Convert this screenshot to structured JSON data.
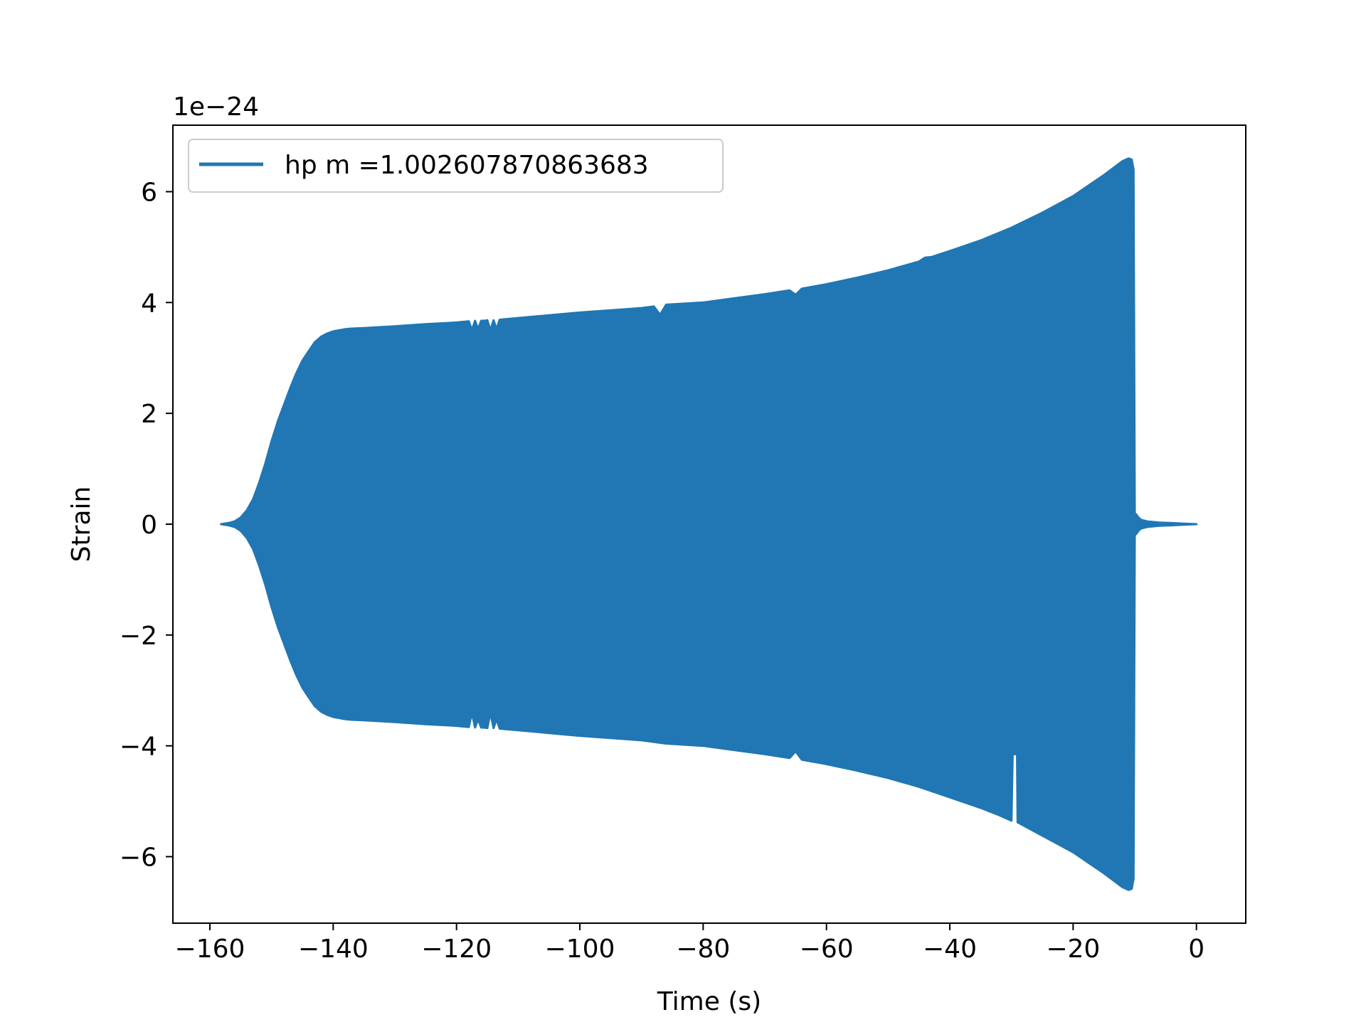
{
  "chart_data": {
    "type": "area",
    "xlabel": "Time (s)",
    "ylabel": "Strain",
    "offset_label": "1e−24",
    "xlim": [
      -166,
      8
    ],
    "ylim": [
      -7.2,
      7.2
    ],
    "xticks": [
      -160,
      -140,
      -120,
      -100,
      -80,
      -60,
      -40,
      -20,
      0
    ],
    "xtick_labels": [
      "−160",
      "−140",
      "−120",
      "−100",
      "−80",
      "−60",
      "−40",
      "−20",
      "0"
    ],
    "yticks": [
      -6,
      -4,
      -2,
      0,
      2,
      4,
      6
    ],
    "ytick_labels": [
      "−6",
      "−4",
      "−2",
      "0",
      "2",
      "4",
      "6"
    ],
    "grid": false,
    "legend": {
      "position": "upper-left",
      "entries": [
        {
          "label": "hp m =1.002607870863683",
          "color": "#2077b4"
        }
      ]
    },
    "series": [
      {
        "name": "hp m =1.002607870863683",
        "color": "#2077b4",
        "upper_envelope": {
          "x": [
            -158.2,
            -157,
            -156,
            -155,
            -154,
            -153,
            -152,
            -151,
            -150,
            -149,
            -148,
            -147,
            -146,
            -145,
            -144,
            -143,
            -142,
            -141,
            -140,
            -139,
            -138,
            -137,
            -135,
            -130,
            -125,
            -120,
            -118,
            -117.5,
            -117,
            -116.5,
            -116,
            -115.5,
            -115,
            -114.5,
            -114,
            -113.5,
            -113,
            -110,
            -100,
            -90,
            -88,
            -87,
            -86,
            -80,
            -70,
            -66,
            -65,
            -64,
            -60,
            -55,
            -50,
            -45,
            -44,
            -43,
            -40,
            -35,
            -30,
            -25,
            -20,
            -15,
            -12,
            -11,
            -10.5,
            -10.2,
            -10.0,
            -9.8,
            -9.6,
            -9.4,
            -9.2,
            -9.0,
            -8,
            -6,
            -4,
            -2,
            0
          ],
          "y": [
            0.0,
            0.02,
            0.05,
            0.12,
            0.25,
            0.45,
            0.75,
            1.1,
            1.5,
            1.85,
            2.15,
            2.45,
            2.72,
            2.95,
            3.12,
            3.28,
            3.38,
            3.44,
            3.48,
            3.5,
            3.52,
            3.53,
            3.54,
            3.57,
            3.61,
            3.64,
            3.66,
            3.5,
            3.67,
            3.52,
            3.67,
            3.67,
            3.68,
            3.5,
            3.68,
            3.52,
            3.69,
            3.72,
            3.82,
            3.9,
            3.93,
            3.78,
            3.96,
            4.0,
            4.15,
            4.22,
            4.14,
            4.25,
            4.33,
            4.45,
            4.58,
            4.74,
            4.81,
            4.82,
            4.93,
            5.12,
            5.35,
            5.62,
            5.92,
            6.3,
            6.55,
            6.6,
            6.58,
            6.4,
            0.2,
            0.18,
            0.15,
            0.12,
            0.1,
            0.08,
            0.05,
            0.03,
            0.02,
            0.01,
            0.0
          ]
        },
        "lower_envelope": {
          "x": [
            -158.2,
            -157,
            -156,
            -155,
            -154,
            -153,
            -152,
            -151,
            -150,
            -149,
            -148,
            -147,
            -146,
            -145,
            -144,
            -143,
            -142,
            -141,
            -140,
            -139,
            -138,
            -137,
            -135,
            -130,
            -125,
            -120,
            -118,
            -117.5,
            -117,
            -116.5,
            -116,
            -115.5,
            -115,
            -114.5,
            -114,
            -113.5,
            -113,
            -110,
            -100,
            -90,
            -86,
            -80,
            -70,
            -66,
            -65,
            -64,
            -60,
            -55,
            -50,
            -45,
            -40,
            -35,
            -32,
            -30,
            -29.8,
            -29.7,
            -29.5,
            -29.3,
            -29.1,
            -29.0,
            -25,
            -20,
            -15,
            -12,
            -11,
            -10.5,
            -10.2,
            -10.0,
            -9.8,
            -9.6,
            -9.4,
            -9.2,
            -9.0,
            -8,
            -6,
            -4,
            -2,
            0
          ],
          "y": [
            0.0,
            -0.02,
            -0.05,
            -0.12,
            -0.25,
            -0.45,
            -0.75,
            -1.1,
            -1.5,
            -1.85,
            -2.15,
            -2.45,
            -2.72,
            -2.95,
            -3.12,
            -3.28,
            -3.38,
            -3.44,
            -3.48,
            -3.5,
            -3.52,
            -3.53,
            -3.54,
            -3.57,
            -3.61,
            -3.64,
            -3.66,
            -3.4,
            -3.67,
            -3.52,
            -3.67,
            -3.67,
            -3.68,
            -3.4,
            -3.68,
            -3.52,
            -3.69,
            -3.72,
            -3.82,
            -3.9,
            -3.96,
            -4.0,
            -4.15,
            -4.22,
            -4.1,
            -4.25,
            -4.33,
            -4.45,
            -4.58,
            -4.74,
            -4.93,
            -5.12,
            -5.25,
            -5.35,
            -4.15,
            -4.15,
            -4.15,
            -4.15,
            -4.15,
            -5.38,
            -5.62,
            -5.92,
            -6.3,
            -6.55,
            -6.6,
            -6.58,
            -6.4,
            -0.2,
            -0.18,
            -0.15,
            -0.12,
            -0.1,
            -0.08,
            -0.05,
            -0.03,
            -0.02,
            -0.01,
            0.0
          ]
        }
      }
    ]
  }
}
